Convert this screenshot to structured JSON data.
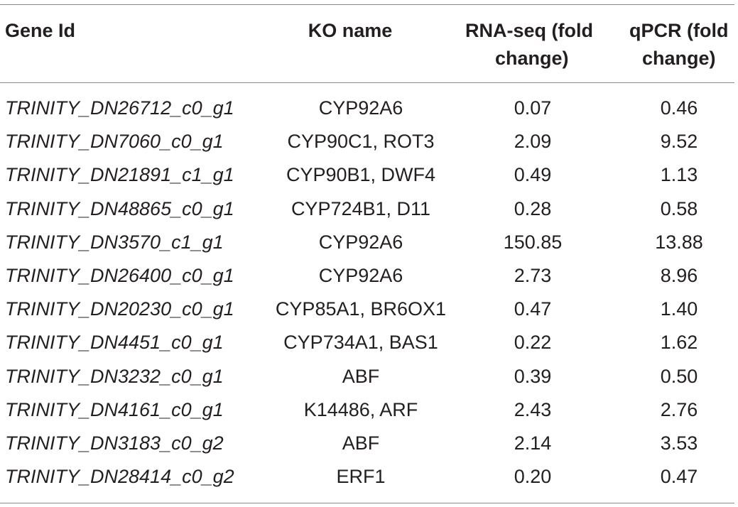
{
  "table": {
    "headers": {
      "gene_id": "Gene Id",
      "ko_name": "KO name",
      "rna_seq_line1": "RNA-seq (fold",
      "rna_seq_line2": "change)",
      "qpcr_line1": "qPCR (fold",
      "qpcr_line2": "change)"
    },
    "rows": [
      {
        "gene": "TRINITY_DN26712_c0_g1",
        "ko": "CYP92A6",
        "rna": "0.07",
        "qpcr": "0.46"
      },
      {
        "gene": "TRINITY_DN7060_c0_g1",
        "ko": "CYP90C1, ROT3",
        "rna": "2.09",
        "qpcr": "9.52"
      },
      {
        "gene": "TRINITY_DN21891_c1_g1",
        "ko": "CYP90B1, DWF4",
        "rna": "0.49",
        "qpcr": "1.13"
      },
      {
        "gene": "TRINITY_DN48865_c0_g1",
        "ko": "CYP724B1, D11",
        "rna": "0.28",
        "qpcr": "0.58"
      },
      {
        "gene": "TRINITY_DN3570_c1_g1",
        "ko": "CYP92A6",
        "rna": "150.85",
        "qpcr": "13.88"
      },
      {
        "gene": "TRINITY_DN26400_c0_g1",
        "ko": "CYP92A6",
        "rna": "2.73",
        "qpcr": "8.96"
      },
      {
        "gene": "TRINITY_DN20230_c0_g1",
        "ko": "CYP85A1, BR6OX1",
        "rna": "0.47",
        "qpcr": "1.40"
      },
      {
        "gene": "TRINITY_DN4451_c0_g1",
        "ko": "CYP734A1, BAS1",
        "rna": "0.22",
        "qpcr": "1.62"
      },
      {
        "gene": "TRINITY_DN3232_c0_g1",
        "ko": "ABF",
        "rna": "0.39",
        "qpcr": "0.50"
      },
      {
        "gene": "TRINITY_DN4161_c0_g1",
        "ko": "K14486, ARF",
        "rna": "2.43",
        "qpcr": "2.76"
      },
      {
        "gene": "TRINITY_DN3183_c0_g2",
        "ko": "ABF",
        "rna": "2.14",
        "qpcr": "3.53"
      },
      {
        "gene": "TRINITY_DN28414_c0_g2",
        "ko": "ERF1",
        "rna": "0.20",
        "qpcr": "0.47"
      }
    ]
  }
}
